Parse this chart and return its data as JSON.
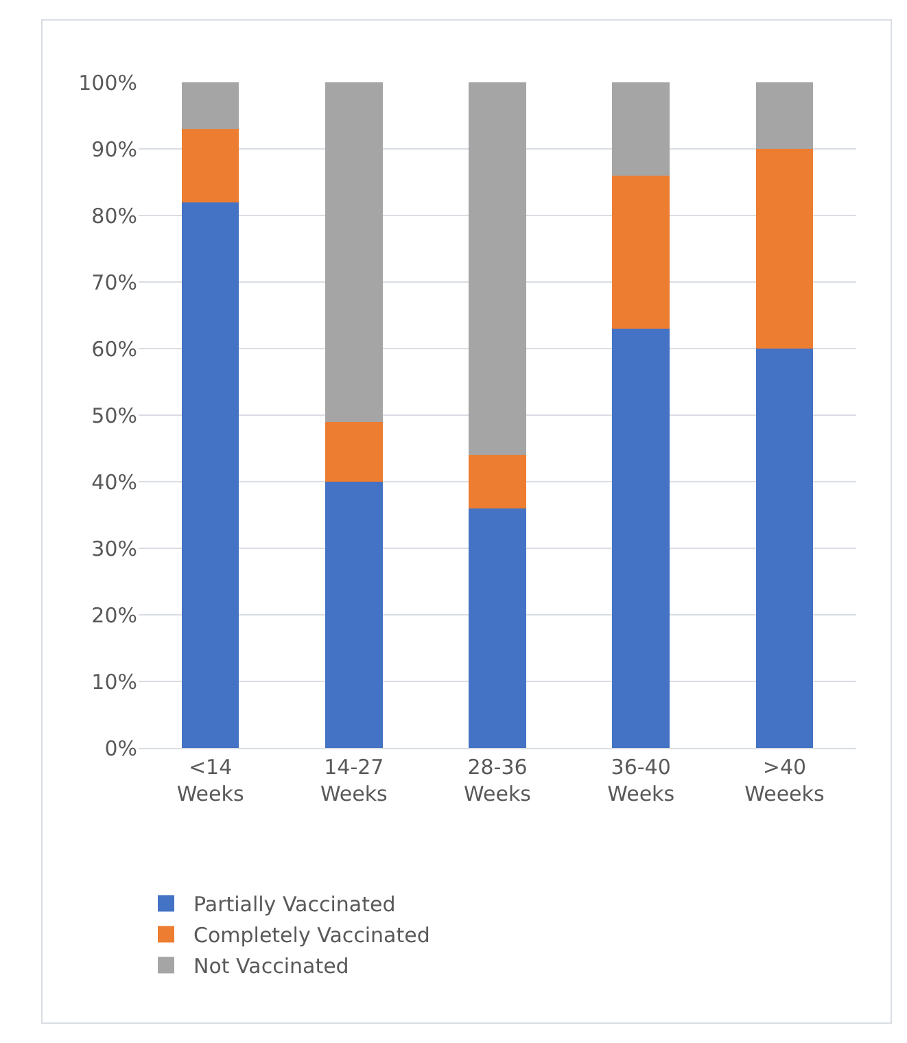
{
  "chart_data": {
    "type": "bar",
    "stacked": true,
    "categories": [
      "<14 Weeks",
      "14-27 Weeks",
      "28-36 Weeks",
      "36-40 Weeks",
      ">40 Weeeks"
    ],
    "series": [
      {
        "name": "Partially Vaccinated",
        "color": "#4472c4",
        "values": [
          82,
          40,
          36,
          63,
          60
        ]
      },
      {
        "name": "Completely Vaccinated",
        "color": "#ed7d31",
        "values": [
          11,
          9,
          8,
          23,
          30
        ]
      },
      {
        "name": "Not Vaccinated",
        "color": "#a5a5a5",
        "values": [
          7,
          51,
          56,
          14,
          10
        ]
      }
    ],
    "ylim": [
      0,
      100
    ],
    "yticks": [
      {
        "value": 0,
        "label": "0%"
      },
      {
        "value": 10,
        "label": "10%"
      },
      {
        "value": 20,
        "label": "20%"
      },
      {
        "value": 30,
        "label": "30%"
      },
      {
        "value": 40,
        "label": "40%"
      },
      {
        "value": 50,
        "label": "50%"
      },
      {
        "value": 60,
        "label": "60%"
      },
      {
        "value": 70,
        "label": "70%"
      },
      {
        "value": 80,
        "label": "80%"
      },
      {
        "value": 90,
        "label": "90%"
      },
      {
        "value": 100,
        "label": "100%"
      }
    ],
    "grid": "y",
    "legend": "bottom"
  }
}
